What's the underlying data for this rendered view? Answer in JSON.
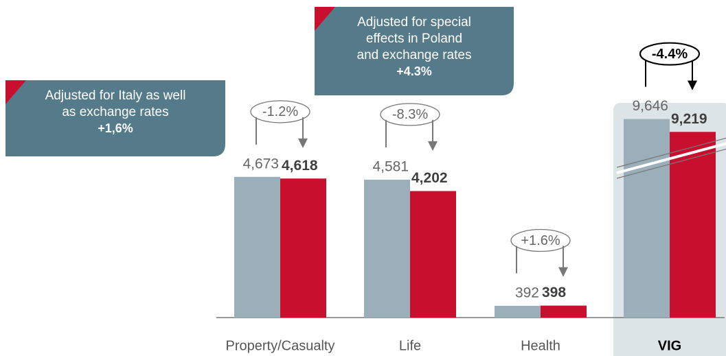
{
  "chart_data": {
    "type": "bar",
    "categories": [
      "Property/Casualty",
      "Life",
      "Health",
      "VIG"
    ],
    "series": [
      {
        "color": "#9aafb9",
        "values": [
          4673,
          4581,
          392,
          9646
        ],
        "value_labels": [
          "4,673",
          "4,581",
          "392",
          "9,646"
        ]
      },
      {
        "color": "#c8102e",
        "values": [
          4618,
          4202,
          398,
          9219
        ],
        "value_labels": [
          "4,618",
          "4,202",
          "398",
          "9,219"
        ]
      }
    ],
    "changes": [
      "-1.2%",
      "-8.3%",
      "+1.6%",
      "-4.4%"
    ],
    "highlight_category": 3,
    "axis_break": true,
    "annotations": [
      {
        "lines": [
          "Adjusted for Italy as well",
          "as exchange rates"
        ],
        "value": "+1,6%"
      },
      {
        "lines": [
          "Adjusted for special",
          "effects in Poland",
          "and exchange rates"
        ],
        "value": "+4.3%"
      }
    ]
  }
}
